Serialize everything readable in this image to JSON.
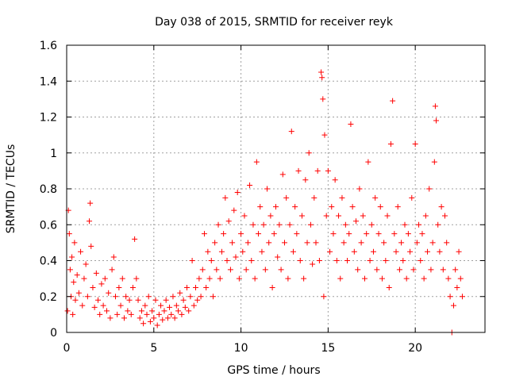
{
  "chart_data": {
    "type": "scatter",
    "title": "Day 038 of 2015, SRMTID for receiver reyk",
    "xlabel": "GPS time / hours",
    "ylabel": "SRMTID / TECUs",
    "xlim": [
      0,
      24
    ],
    "ylim": [
      0,
      1.6
    ],
    "xticks": [
      0,
      5,
      10,
      15,
      20
    ],
    "xtick_labels": [
      "0",
      "5",
      "10",
      "15",
      "20"
    ],
    "yticks": [
      0,
      0.2,
      0.4,
      0.6,
      0.8,
      1.0,
      1.2,
      1.4,
      1.6
    ],
    "ytick_labels": [
      "0",
      "0.2",
      "0.4",
      "0.6",
      "0.8",
      "1",
      "1.2",
      "1.4",
      "1.6"
    ],
    "grid": true,
    "marker": "+",
    "colors": {
      "series": "#ff0000",
      "grid": "#a0a0a0",
      "axis": "#000000"
    },
    "series": [
      {
        "name": "SRMTID",
        "points": [
          [
            0.05,
            0.12
          ],
          [
            0.1,
            0.68
          ],
          [
            0.15,
            0.55
          ],
          [
            0.2,
            0.35
          ],
          [
            0.25,
            0.2
          ],
          [
            0.3,
            0.42
          ],
          [
            0.35,
            0.1
          ],
          [
            0.4,
            0.28
          ],
          [
            0.45,
            0.5
          ],
          [
            0.5,
            0.18
          ],
          [
            0.6,
            0.32
          ],
          [
            0.7,
            0.22
          ],
          [
            0.8,
            0.45
          ],
          [
            0.9,
            0.15
          ],
          [
            1.0,
            0.3
          ],
          [
            1.1,
            0.38
          ],
          [
            1.2,
            0.2
          ],
          [
            1.3,
            0.62
          ],
          [
            1.35,
            0.72
          ],
          [
            1.4,
            0.48
          ],
          [
            1.5,
            0.25
          ],
          [
            1.6,
            0.14
          ],
          [
            1.7,
            0.33
          ],
          [
            1.8,
            0.18
          ],
          [
            1.9,
            0.1
          ],
          [
            2.0,
            0.27
          ],
          [
            2.1,
            0.15
          ],
          [
            2.2,
            0.3
          ],
          [
            2.3,
            0.12
          ],
          [
            2.4,
            0.22
          ],
          [
            2.5,
            0.08
          ],
          [
            2.6,
            0.35
          ],
          [
            2.7,
            0.42
          ],
          [
            2.8,
            0.2
          ],
          [
            2.9,
            0.1
          ],
          [
            3.0,
            0.25
          ],
          [
            3.1,
            0.15
          ],
          [
            3.2,
            0.3
          ],
          [
            3.3,
            0.08
          ],
          [
            3.4,
            0.2
          ],
          [
            3.5,
            0.12
          ],
          [
            3.6,
            0.18
          ],
          [
            3.7,
            0.1
          ],
          [
            3.8,
            0.25
          ],
          [
            3.9,
            0.52
          ],
          [
            4.0,
            0.3
          ],
          [
            4.1,
            0.18
          ],
          [
            4.2,
            0.08
          ],
          [
            4.3,
            0.12
          ],
          [
            4.4,
            0.05
          ],
          [
            4.5,
            0.15
          ],
          [
            4.6,
            0.1
          ],
          [
            4.7,
            0.2
          ],
          [
            4.8,
            0.06
          ],
          [
            4.9,
            0.12
          ],
          [
            5.0,
            0.08
          ],
          [
            5.1,
            0.18
          ],
          [
            5.2,
            0.04
          ],
          [
            5.3,
            0.1
          ],
          [
            5.4,
            0.15
          ],
          [
            5.5,
            0.07
          ],
          [
            5.6,
            0.12
          ],
          [
            5.7,
            0.18
          ],
          [
            5.8,
            0.08
          ],
          [
            5.9,
            0.14
          ],
          [
            6.0,
            0.1
          ],
          [
            6.1,
            0.2
          ],
          [
            6.2,
            0.08
          ],
          [
            6.3,
            0.15
          ],
          [
            6.4,
            0.12
          ],
          [
            6.5,
            0.22
          ],
          [
            6.6,
            0.1
          ],
          [
            6.7,
            0.18
          ],
          [
            6.8,
            0.14
          ],
          [
            6.9,
            0.25
          ],
          [
            7.0,
            0.12
          ],
          [
            7.1,
            0.2
          ],
          [
            7.2,
            0.4
          ],
          [
            7.3,
            0.15
          ],
          [
            7.4,
            0.25
          ],
          [
            7.5,
            0.18
          ],
          [
            7.6,
            0.3
          ],
          [
            7.7,
            0.2
          ],
          [
            7.8,
            0.35
          ],
          [
            7.9,
            0.55
          ],
          [
            8.0,
            0.25
          ],
          [
            8.1,
            0.45
          ],
          [
            8.2,
            0.3
          ],
          [
            8.3,
            0.4
          ],
          [
            8.4,
            0.2
          ],
          [
            8.5,
            0.5
          ],
          [
            8.6,
            0.35
          ],
          [
            8.7,
            0.6
          ],
          [
            8.8,
            0.3
          ],
          [
            8.9,
            0.45
          ],
          [
            9.0,
            0.55
          ],
          [
            9.1,
            0.75
          ],
          [
            9.2,
            0.4
          ],
          [
            9.3,
            0.62
          ],
          [
            9.4,
            0.35
          ],
          [
            9.5,
            0.5
          ],
          [
            9.6,
            0.68
          ],
          [
            9.7,
            0.42
          ],
          [
            9.8,
            0.78
          ],
          [
            9.9,
            0.3
          ],
          [
            10.0,
            0.55
          ],
          [
            10.1,
            0.45
          ],
          [
            10.2,
            0.65
          ],
          [
            10.3,
            0.35
          ],
          [
            10.4,
            0.5
          ],
          [
            10.5,
            0.82
          ],
          [
            10.6,
            0.4
          ],
          [
            10.7,
            0.6
          ],
          [
            10.8,
            0.3
          ],
          [
            10.9,
            0.95
          ],
          [
            11.0,
            0.55
          ],
          [
            11.1,
            0.7
          ],
          [
            11.2,
            0.45
          ],
          [
            11.3,
            0.6
          ],
          [
            11.4,
            0.35
          ],
          [
            11.5,
            0.8
          ],
          [
            11.6,
            0.5
          ],
          [
            11.7,
            0.65
          ],
          [
            11.8,
            0.25
          ],
          [
            11.9,
            0.55
          ],
          [
            12.0,
            0.7
          ],
          [
            12.1,
            0.42
          ],
          [
            12.2,
            0.6
          ],
          [
            12.3,
            0.35
          ],
          [
            12.4,
            0.88
          ],
          [
            12.5,
            0.5
          ],
          [
            12.6,
            0.75
          ],
          [
            12.7,
            0.3
          ],
          [
            12.8,
            0.6
          ],
          [
            12.9,
            1.12
          ],
          [
            13.0,
            0.45
          ],
          [
            13.1,
            0.7
          ],
          [
            13.2,
            0.55
          ],
          [
            13.3,
            0.9
          ],
          [
            13.4,
            0.4
          ],
          [
            13.5,
            0.65
          ],
          [
            13.6,
            0.3
          ],
          [
            13.7,
            0.85
          ],
          [
            13.8,
            0.5
          ],
          [
            13.9,
            1.0
          ],
          [
            14.0,
            0.6
          ],
          [
            14.1,
            0.38
          ],
          [
            14.2,
            0.75
          ],
          [
            14.3,
            0.5
          ],
          [
            14.4,
            0.9
          ],
          [
            14.5,
            0.4
          ],
          [
            14.6,
            1.45
          ],
          [
            14.65,
            1.42
          ],
          [
            14.7,
            1.3
          ],
          [
            14.75,
            0.2
          ],
          [
            14.8,
            1.1
          ],
          [
            14.9,
            0.65
          ],
          [
            15.0,
            0.9
          ],
          [
            15.1,
            0.45
          ],
          [
            15.2,
            0.7
          ],
          [
            15.3,
            0.55
          ],
          [
            15.4,
            0.85
          ],
          [
            15.5,
            0.4
          ],
          [
            15.6,
            0.65
          ],
          [
            15.7,
            0.3
          ],
          [
            15.8,
            0.75
          ],
          [
            15.9,
            0.5
          ],
          [
            16.0,
            0.6
          ],
          [
            16.1,
            0.4
          ],
          [
            16.2,
            0.55
          ],
          [
            16.3,
            1.16
          ],
          [
            16.4,
            0.7
          ],
          [
            16.5,
            0.45
          ],
          [
            16.6,
            0.62
          ],
          [
            16.7,
            0.35
          ],
          [
            16.8,
            0.8
          ],
          [
            16.9,
            0.5
          ],
          [
            17.0,
            0.65
          ],
          [
            17.1,
            0.3
          ],
          [
            17.2,
            0.55
          ],
          [
            17.3,
            0.95
          ],
          [
            17.4,
            0.4
          ],
          [
            17.5,
            0.6
          ],
          [
            17.6,
            0.45
          ],
          [
            17.7,
            0.75
          ],
          [
            17.8,
            0.35
          ],
          [
            17.9,
            0.55
          ],
          [
            18.0,
            0.7
          ],
          [
            18.1,
            0.3
          ],
          [
            18.2,
            0.5
          ],
          [
            18.3,
            0.4
          ],
          [
            18.4,
            0.65
          ],
          [
            18.5,
            0.25
          ],
          [
            18.6,
            1.05
          ],
          [
            18.7,
            1.29
          ],
          [
            18.8,
            0.55
          ],
          [
            18.9,
            0.45
          ],
          [
            19.0,
            0.7
          ],
          [
            19.1,
            0.35
          ],
          [
            19.2,
            0.5
          ],
          [
            19.3,
            0.4
          ],
          [
            19.4,
            0.6
          ],
          [
            19.5,
            0.3
          ],
          [
            19.6,
            0.55
          ],
          [
            19.7,
            0.45
          ],
          [
            19.8,
            0.75
          ],
          [
            19.9,
            0.35
          ],
          [
            20.0,
            1.05
          ],
          [
            20.1,
            0.5
          ],
          [
            20.2,
            0.6
          ],
          [
            20.3,
            0.4
          ],
          [
            20.4,
            0.55
          ],
          [
            20.5,
            0.3
          ],
          [
            20.6,
            0.65
          ],
          [
            20.7,
            0.45
          ],
          [
            20.8,
            0.8
          ],
          [
            20.9,
            0.35
          ],
          [
            21.0,
            0.5
          ],
          [
            21.1,
            0.95
          ],
          [
            21.15,
            1.26
          ],
          [
            21.2,
            1.18
          ],
          [
            21.3,
            0.6
          ],
          [
            21.4,
            0.45
          ],
          [
            21.5,
            0.7
          ],
          [
            21.6,
            0.35
          ],
          [
            21.7,
            0.65
          ],
          [
            21.8,
            0.5
          ],
          [
            21.9,
            0.3
          ],
          [
            22.0,
            0.2
          ],
          [
            22.1,
            0.0
          ],
          [
            22.2,
            0.15
          ],
          [
            22.3,
            0.35
          ],
          [
            22.4,
            0.25
          ],
          [
            22.5,
            0.45
          ],
          [
            22.6,
            0.3
          ],
          [
            22.7,
            0.2
          ]
        ]
      }
    ]
  }
}
